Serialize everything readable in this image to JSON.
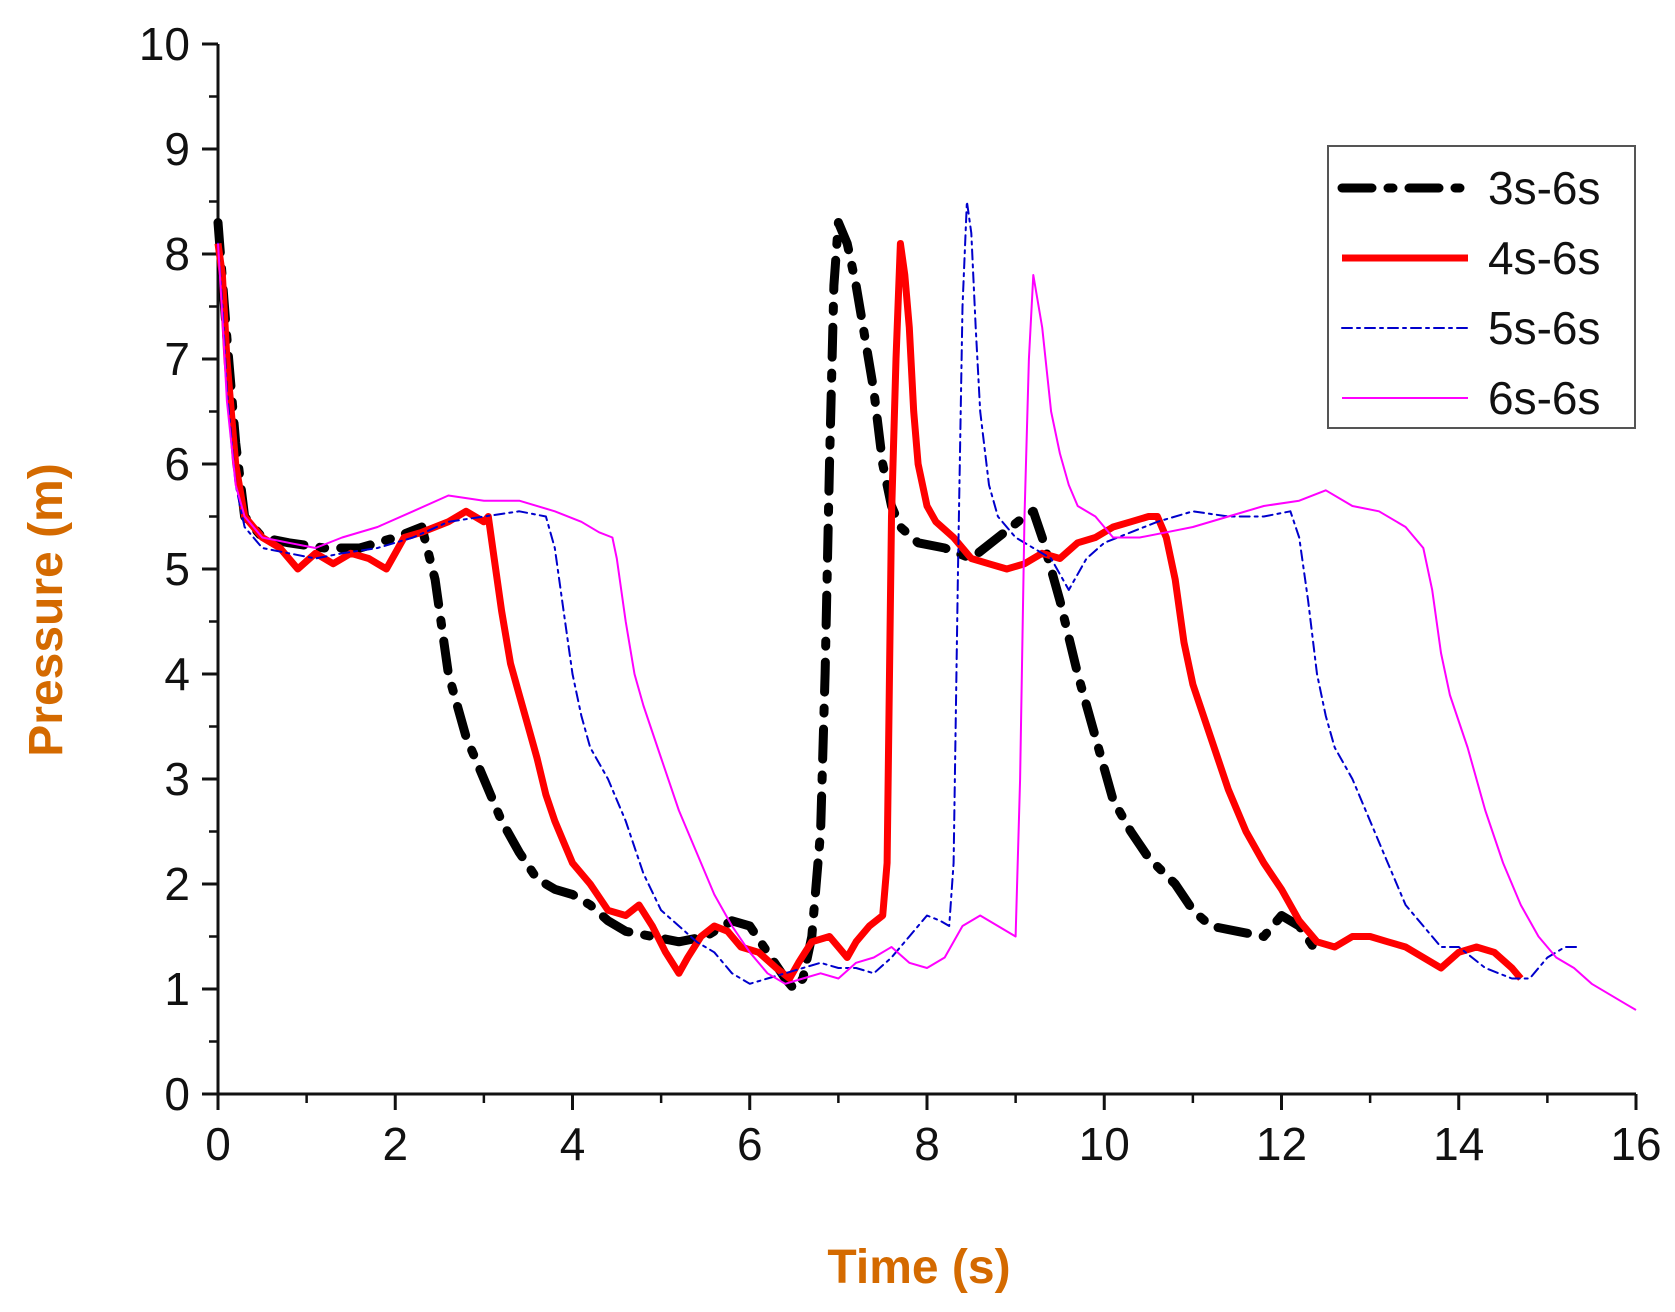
{
  "chart_data": {
    "type": "line",
    "title": "",
    "xlabel": "Time (s)",
    "ylabel": "Pressure (m)",
    "xlim": [
      0,
      16
    ],
    "ylim": [
      0,
      10
    ],
    "xticks": [
      0,
      2,
      4,
      6,
      8,
      10,
      12,
      14,
      16
    ],
    "yticks": [
      0,
      1,
      2,
      3,
      4,
      5,
      6,
      7,
      8,
      9,
      10
    ],
    "grid": false,
    "legend_position": "top-right",
    "series": [
      {
        "name": "3s-6s",
        "color": "#000000",
        "style": "dash-dot-thick",
        "points": [
          [
            0,
            8.3
          ],
          [
            0.1,
            7.2
          ],
          [
            0.2,
            6.2
          ],
          [
            0.3,
            5.5
          ],
          [
            0.5,
            5.3
          ],
          [
            0.8,
            5.25
          ],
          [
            1.2,
            5.2
          ],
          [
            1.6,
            5.2
          ],
          [
            2.0,
            5.3
          ],
          [
            2.3,
            5.4
          ],
          [
            2.45,
            4.9
          ],
          [
            2.6,
            4.0
          ],
          [
            2.8,
            3.4
          ],
          [
            3.0,
            3.0
          ],
          [
            3.2,
            2.6
          ],
          [
            3.4,
            2.3
          ],
          [
            3.6,
            2.05
          ],
          [
            3.8,
            1.95
          ],
          [
            4.0,
            1.9
          ],
          [
            4.2,
            1.8
          ],
          [
            4.4,
            1.65
          ],
          [
            4.6,
            1.55
          ],
          [
            4.9,
            1.5
          ],
          [
            5.2,
            1.45
          ],
          [
            5.5,
            1.5
          ],
          [
            5.8,
            1.65
          ],
          [
            6.0,
            1.6
          ],
          [
            6.2,
            1.35
          ],
          [
            6.4,
            1.1
          ],
          [
            6.5,
            1.0
          ],
          [
            6.6,
            1.1
          ],
          [
            6.7,
            1.5
          ],
          [
            6.8,
            2.5
          ],
          [
            6.85,
            4.0
          ],
          [
            6.9,
            6.0
          ],
          [
            6.95,
            7.7
          ],
          [
            7.0,
            8.3
          ],
          [
            7.1,
            8.1
          ],
          [
            7.2,
            7.7
          ],
          [
            7.3,
            7.2
          ],
          [
            7.4,
            6.7
          ],
          [
            7.5,
            6.0
          ],
          [
            7.6,
            5.6
          ],
          [
            7.7,
            5.4
          ],
          [
            7.9,
            5.25
          ],
          [
            8.2,
            5.2
          ],
          [
            8.5,
            5.1
          ],
          [
            8.8,
            5.3
          ],
          [
            9.1,
            5.5
          ],
          [
            9.2,
            5.55
          ],
          [
            9.3,
            5.3
          ],
          [
            9.5,
            4.7
          ],
          [
            9.7,
            4.0
          ],
          [
            9.9,
            3.4
          ],
          [
            10.1,
            2.8
          ],
          [
            10.3,
            2.5
          ],
          [
            10.5,
            2.25
          ],
          [
            10.8,
            2.0
          ],
          [
            11.0,
            1.75
          ],
          [
            11.2,
            1.6
          ],
          [
            11.5,
            1.55
          ],
          [
            11.8,
            1.5
          ],
          [
            12.0,
            1.7
          ],
          [
            12.2,
            1.6
          ],
          [
            12.4,
            1.35
          ]
        ]
      },
      {
        "name": "4s-6s",
        "color": "#ff0000",
        "style": "solid-thick",
        "points": [
          [
            0,
            8.1
          ],
          [
            0.05,
            7.8
          ],
          [
            0.1,
            7.0
          ],
          [
            0.2,
            6.0
          ],
          [
            0.3,
            5.5
          ],
          [
            0.5,
            5.3
          ],
          [
            0.7,
            5.2
          ],
          [
            0.9,
            5.0
          ],
          [
            1.1,
            5.15
          ],
          [
            1.3,
            5.05
          ],
          [
            1.5,
            5.15
          ],
          [
            1.7,
            5.1
          ],
          [
            1.9,
            5.0
          ],
          [
            2.1,
            5.3
          ],
          [
            2.3,
            5.35
          ],
          [
            2.6,
            5.45
          ],
          [
            2.8,
            5.55
          ],
          [
            3.0,
            5.45
          ],
          [
            3.05,
            5.5
          ],
          [
            3.1,
            5.2
          ],
          [
            3.2,
            4.6
          ],
          [
            3.3,
            4.1
          ],
          [
            3.4,
            3.8
          ],
          [
            3.5,
            3.5
          ],
          [
            3.6,
            3.2
          ],
          [
            3.7,
            2.85
          ],
          [
            3.8,
            2.6
          ],
          [
            3.9,
            2.4
          ],
          [
            4.0,
            2.2
          ],
          [
            4.2,
            2.0
          ],
          [
            4.4,
            1.75
          ],
          [
            4.6,
            1.7
          ],
          [
            4.75,
            1.8
          ],
          [
            4.9,
            1.6
          ],
          [
            5.05,
            1.35
          ],
          [
            5.2,
            1.15
          ],
          [
            5.3,
            1.3
          ],
          [
            5.45,
            1.5
          ],
          [
            5.6,
            1.6
          ],
          [
            5.75,
            1.55
          ],
          [
            5.9,
            1.4
          ],
          [
            6.1,
            1.35
          ],
          [
            6.3,
            1.2
          ],
          [
            6.45,
            1.1
          ],
          [
            6.55,
            1.25
          ],
          [
            6.7,
            1.45
          ],
          [
            6.9,
            1.5
          ],
          [
            7.0,
            1.4
          ],
          [
            7.1,
            1.3
          ],
          [
            7.2,
            1.45
          ],
          [
            7.35,
            1.6
          ],
          [
            7.5,
            1.7
          ],
          [
            7.55,
            2.2
          ],
          [
            7.6,
            5.5
          ],
          [
            7.65,
            7.0
          ],
          [
            7.7,
            8.1
          ],
          [
            7.75,
            7.8
          ],
          [
            7.8,
            7.3
          ],
          [
            7.85,
            6.5
          ],
          [
            7.9,
            6.0
          ],
          [
            8.0,
            5.6
          ],
          [
            8.1,
            5.45
          ],
          [
            8.3,
            5.3
          ],
          [
            8.5,
            5.1
          ],
          [
            8.7,
            5.05
          ],
          [
            8.9,
            5.0
          ],
          [
            9.1,
            5.05
          ],
          [
            9.3,
            5.15
          ],
          [
            9.5,
            5.1
          ],
          [
            9.7,
            5.25
          ],
          [
            9.9,
            5.3
          ],
          [
            10.1,
            5.4
          ],
          [
            10.3,
            5.45
          ],
          [
            10.5,
            5.5
          ],
          [
            10.6,
            5.5
          ],
          [
            10.7,
            5.3
          ],
          [
            10.8,
            4.9
          ],
          [
            10.9,
            4.3
          ],
          [
            11.0,
            3.9
          ],
          [
            11.2,
            3.4
          ],
          [
            11.4,
            2.9
          ],
          [
            11.6,
            2.5
          ],
          [
            11.8,
            2.2
          ],
          [
            12.0,
            1.95
          ],
          [
            12.2,
            1.65
          ],
          [
            12.4,
            1.45
          ],
          [
            12.6,
            1.4
          ],
          [
            12.8,
            1.5
          ],
          [
            13.0,
            1.5
          ],
          [
            13.2,
            1.45
          ],
          [
            13.4,
            1.4
          ],
          [
            13.6,
            1.3
          ],
          [
            13.8,
            1.2
          ],
          [
            14.0,
            1.35
          ],
          [
            14.2,
            1.4
          ],
          [
            14.4,
            1.35
          ],
          [
            14.6,
            1.2
          ],
          [
            14.7,
            1.1
          ]
        ]
      },
      {
        "name": "5s-6s",
        "color": "#0000cc",
        "style": "dash-dot-thin",
        "points": [
          [
            0,
            8.1
          ],
          [
            0.05,
            7.5
          ],
          [
            0.1,
            6.7
          ],
          [
            0.2,
            5.8
          ],
          [
            0.3,
            5.4
          ],
          [
            0.5,
            5.2
          ],
          [
            0.8,
            5.15
          ],
          [
            1.1,
            5.1
          ],
          [
            1.4,
            5.15
          ],
          [
            1.8,
            5.2
          ],
          [
            2.2,
            5.3
          ],
          [
            2.6,
            5.45
          ],
          [
            3.0,
            5.5
          ],
          [
            3.4,
            5.55
          ],
          [
            3.7,
            5.5
          ],
          [
            3.8,
            5.2
          ],
          [
            3.9,
            4.6
          ],
          [
            4.0,
            4.0
          ],
          [
            4.1,
            3.6
          ],
          [
            4.2,
            3.3
          ],
          [
            4.4,
            3.0
          ],
          [
            4.6,
            2.6
          ],
          [
            4.8,
            2.1
          ],
          [
            5.0,
            1.75
          ],
          [
            5.2,
            1.6
          ],
          [
            5.4,
            1.45
          ],
          [
            5.6,
            1.35
          ],
          [
            5.8,
            1.15
          ],
          [
            6.0,
            1.05
          ],
          [
            6.2,
            1.1
          ],
          [
            6.4,
            1.15
          ],
          [
            6.6,
            1.2
          ],
          [
            6.8,
            1.25
          ],
          [
            7.0,
            1.2
          ],
          [
            7.2,
            1.2
          ],
          [
            7.4,
            1.15
          ],
          [
            7.6,
            1.3
          ],
          [
            7.8,
            1.5
          ],
          [
            8.0,
            1.7
          ],
          [
            8.15,
            1.65
          ],
          [
            8.25,
            1.6
          ],
          [
            8.3,
            2.2
          ],
          [
            8.35,
            5.0
          ],
          [
            8.4,
            7.5
          ],
          [
            8.45,
            8.5
          ],
          [
            8.5,
            8.2
          ],
          [
            8.55,
            7.3
          ],
          [
            8.6,
            6.5
          ],
          [
            8.7,
            5.8
          ],
          [
            8.8,
            5.5
          ],
          [
            9.0,
            5.3
          ],
          [
            9.2,
            5.2
          ],
          [
            9.4,
            5.1
          ],
          [
            9.6,
            4.8
          ],
          [
            9.8,
            5.1
          ],
          [
            10.0,
            5.25
          ],
          [
            10.3,
            5.35
          ],
          [
            10.6,
            5.45
          ],
          [
            11.0,
            5.55
          ],
          [
            11.4,
            5.5
          ],
          [
            11.8,
            5.5
          ],
          [
            12.1,
            5.55
          ],
          [
            12.2,
            5.3
          ],
          [
            12.3,
            4.7
          ],
          [
            12.4,
            4.0
          ],
          [
            12.5,
            3.6
          ],
          [
            12.6,
            3.3
          ],
          [
            12.8,
            3.0
          ],
          [
            13.0,
            2.6
          ],
          [
            13.2,
            2.2
          ],
          [
            13.4,
            1.8
          ],
          [
            13.6,
            1.6
          ],
          [
            13.8,
            1.4
          ],
          [
            14.0,
            1.4
          ],
          [
            14.3,
            1.2
          ],
          [
            14.6,
            1.1
          ],
          [
            14.8,
            1.1
          ],
          [
            15.0,
            1.3
          ],
          [
            15.2,
            1.4
          ],
          [
            15.35,
            1.4
          ]
        ]
      },
      {
        "name": "6s-6s",
        "color": "#ff00ff",
        "style": "solid-thin",
        "points": [
          [
            0,
            8.1
          ],
          [
            0.05,
            7.4
          ],
          [
            0.1,
            6.6
          ],
          [
            0.2,
            5.8
          ],
          [
            0.3,
            5.5
          ],
          [
            0.5,
            5.3
          ],
          [
            0.8,
            5.25
          ],
          [
            1.1,
            5.2
          ],
          [
            1.4,
            5.3
          ],
          [
            1.8,
            5.4
          ],
          [
            2.2,
            5.55
          ],
          [
            2.6,
            5.7
          ],
          [
            3.0,
            5.65
          ],
          [
            3.4,
            5.65
          ],
          [
            3.8,
            5.55
          ],
          [
            4.1,
            5.45
          ],
          [
            4.3,
            5.35
          ],
          [
            4.45,
            5.3
          ],
          [
            4.5,
            5.1
          ],
          [
            4.6,
            4.5
          ],
          [
            4.7,
            4.0
          ],
          [
            4.8,
            3.7
          ],
          [
            5.0,
            3.2
          ],
          [
            5.2,
            2.7
          ],
          [
            5.4,
            2.3
          ],
          [
            5.6,
            1.9
          ],
          [
            5.8,
            1.6
          ],
          [
            6.0,
            1.35
          ],
          [
            6.2,
            1.15
          ],
          [
            6.4,
            1.05
          ],
          [
            6.6,
            1.1
          ],
          [
            6.8,
            1.15
          ],
          [
            7.0,
            1.1
          ],
          [
            7.2,
            1.25
          ],
          [
            7.4,
            1.3
          ],
          [
            7.6,
            1.4
          ],
          [
            7.8,
            1.25
          ],
          [
            8.0,
            1.2
          ],
          [
            8.2,
            1.3
          ],
          [
            8.4,
            1.6
          ],
          [
            8.6,
            1.7
          ],
          [
            8.8,
            1.6
          ],
          [
            9.0,
            1.5
          ],
          [
            9.05,
            3.0
          ],
          [
            9.1,
            5.5
          ],
          [
            9.15,
            7.0
          ],
          [
            9.2,
            7.8
          ],
          [
            9.3,
            7.3
          ],
          [
            9.4,
            6.5
          ],
          [
            9.5,
            6.1
          ],
          [
            9.6,
            5.8
          ],
          [
            9.7,
            5.6
          ],
          [
            9.9,
            5.5
          ],
          [
            10.1,
            5.3
          ],
          [
            10.4,
            5.3
          ],
          [
            10.7,
            5.35
          ],
          [
            11.0,
            5.4
          ],
          [
            11.4,
            5.5
          ],
          [
            11.8,
            5.6
          ],
          [
            12.2,
            5.65
          ],
          [
            12.5,
            5.75
          ],
          [
            12.8,
            5.6
          ],
          [
            13.1,
            5.55
          ],
          [
            13.4,
            5.4
          ],
          [
            13.6,
            5.2
          ],
          [
            13.7,
            4.8
          ],
          [
            13.8,
            4.2
          ],
          [
            13.9,
            3.8
          ],
          [
            14.1,
            3.3
          ],
          [
            14.3,
            2.7
          ],
          [
            14.5,
            2.2
          ],
          [
            14.7,
            1.8
          ],
          [
            14.9,
            1.5
          ],
          [
            15.1,
            1.3
          ],
          [
            15.3,
            1.2
          ],
          [
            15.5,
            1.05
          ],
          [
            15.7,
            0.95
          ],
          [
            15.9,
            0.85
          ],
          [
            16.0,
            0.8
          ]
        ]
      }
    ]
  }
}
